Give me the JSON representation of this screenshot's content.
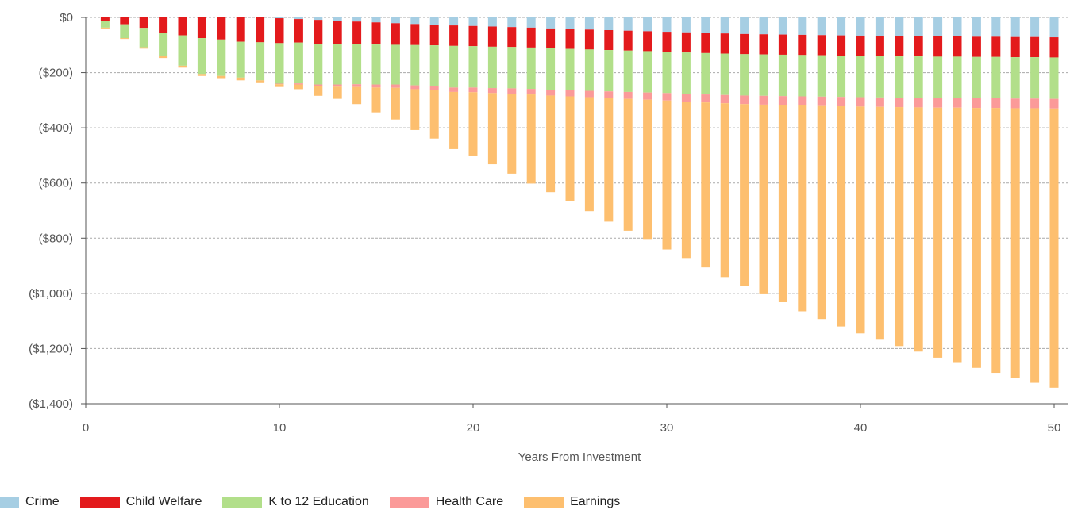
{
  "chart_data": {
    "type": "bar",
    "stacked": true,
    "xlabel": "Years From Investment",
    "ylabel": "",
    "xlim": [
      0,
      50
    ],
    "ylim": [
      -1400,
      0
    ],
    "x_ticks": [
      0,
      10,
      20,
      30,
      40,
      50
    ],
    "y_ticks": [
      0,
      -200,
      -400,
      -600,
      -800,
      -1000,
      -1200,
      -1400
    ],
    "y_tick_labels": [
      "$0",
      "($200)",
      "($400)",
      "($600)",
      "($800)",
      "($1,000)",
      "($1,200)",
      "($1,400)"
    ],
    "grid": true,
    "legend": "bottom-left",
    "x": [
      1,
      2,
      3,
      4,
      5,
      6,
      7,
      8,
      9,
      10,
      11,
      12,
      13,
      14,
      15,
      16,
      17,
      18,
      19,
      20,
      21,
      22,
      23,
      24,
      25,
      26,
      27,
      28,
      29,
      30,
      31,
      32,
      33,
      34,
      35,
      36,
      37,
      38,
      39,
      40,
      41,
      42,
      43,
      44,
      45,
      46,
      47,
      48,
      49,
      50
    ],
    "series": [
      {
        "name": "Crime",
        "color": "#a6cee3",
        "values": [
          0,
          0,
          0,
          0,
          0,
          0,
          0,
          0,
          0,
          -3,
          -6,
          -9,
          -12,
          -15,
          -18,
          -21,
          -24,
          -27,
          -29,
          -31,
          -33,
          -35,
          -37,
          -40,
          -42,
          -44,
          -46,
          -48,
          -50,
          -52,
          -54,
          -56,
          -58,
          -60,
          -61,
          -62,
          -63,
          -64,
          -65,
          -66,
          -67,
          -68,
          -68,
          -69,
          -69,
          -70,
          -70,
          -71,
          -71,
          -72
        ]
      },
      {
        "name": "Child Welfare",
        "color": "#e31a1c",
        "values": [
          -12,
          -25,
          -38,
          -55,
          -65,
          -75,
          -80,
          -88,
          -90,
          -90,
          -85,
          -86,
          -84,
          -81,
          -80,
          -78,
          -76,
          -74,
          -74,
          -73,
          -73,
          -72,
          -72,
          -72,
          -72,
          -72,
          -72,
          -72,
          -72,
          -72,
          -73,
          -73,
          -73,
          -73,
          -73,
          -73,
          -73,
          -73,
          -73,
          -73,
          -73,
          -73,
          -73,
          -73,
          -73,
          -73,
          -73,
          -73,
          -73,
          -73
        ]
      },
      {
        "name": "K to 12 Education",
        "color": "#b2df8a",
        "values": [
          -25,
          -50,
          -70,
          -85,
          -110,
          -130,
          -132,
          -130,
          -138,
          -147,
          -148,
          -148,
          -147,
          -146,
          -145,
          -144,
          -146,
          -148,
          -151,
          -150,
          -150,
          -150,
          -150,
          -150,
          -150,
          -150,
          -150,
          -150,
          -150,
          -150,
          -150,
          -150,
          -150,
          -150,
          -150,
          -150,
          -150,
          -150,
          -150,
          -150,
          -150,
          -150,
          -150,
          -150,
          -150,
          -150,
          -150,
          -150,
          -150,
          -150
        ]
      },
      {
        "name": "Health Care",
        "color": "#fb9a99",
        "values": [
          0,
          0,
          0,
          0,
          0,
          0,
          0,
          0,
          0,
          -2,
          -4,
          -6,
          -8,
          -10,
          -11,
          -12,
          -14,
          -15,
          -16,
          -17,
          -18,
          -19,
          -20,
          -21,
          -22,
          -23,
          -24,
          -25,
          -26,
          -27,
          -28,
          -29,
          -30,
          -31,
          -32,
          -33,
          -33,
          -34,
          -34,
          -34,
          -34,
          -34,
          -35,
          -35,
          -35,
          -35,
          -35,
          -35,
          -35,
          -35
        ]
      },
      {
        "name": "Earnings",
        "color": "#fdbf6f",
        "values": [
          -3,
          -3,
          -5,
          -7,
          -7,
          -7,
          -8,
          -10,
          -10,
          -10,
          -17,
          -35,
          -44,
          -62,
          -90,
          -115,
          -148,
          -175,
          -207,
          -232,
          -258,
          -290,
          -323,
          -350,
          -380,
          -413,
          -448,
          -478,
          -505,
          -540,
          -567,
          -598,
          -630,
          -658,
          -687,
          -714,
          -746,
          -772,
          -798,
          -822,
          -844,
          -866,
          -885,
          -906,
          -925,
          -942,
          -960,
          -978,
          -995,
          -1012
        ]
      }
    ]
  }
}
